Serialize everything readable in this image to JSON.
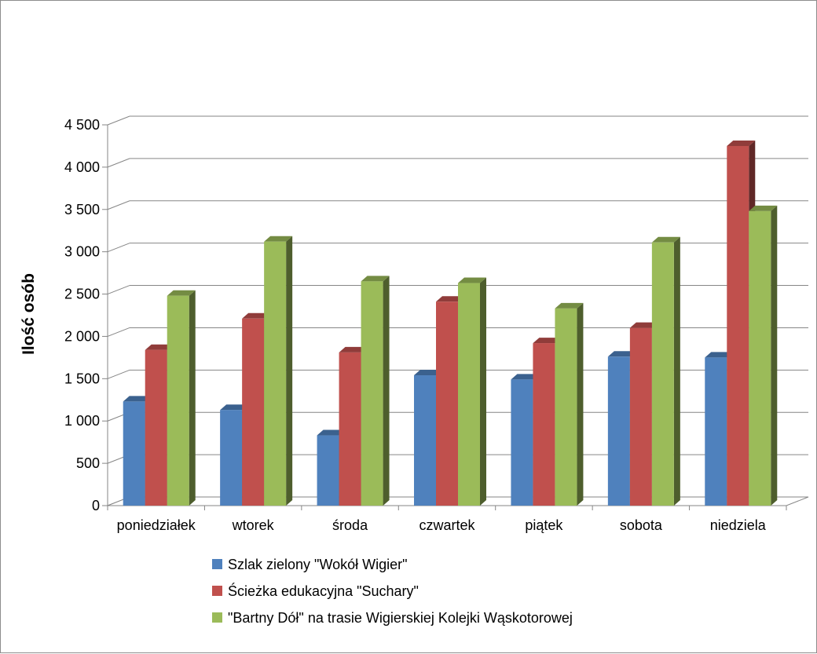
{
  "chart_data": {
    "type": "bar",
    "title": "",
    "xlabel": "",
    "ylabel": "Ilość osób",
    "ylim": [
      0,
      4500
    ],
    "yticks": [
      0,
      500,
      1000,
      1500,
      2000,
      2500,
      3000,
      3500,
      4000,
      4500
    ],
    "ytick_labels": [
      "0",
      "500",
      "1 000",
      "1 500",
      "2 000",
      "2 500",
      "3 000",
      "3 500",
      "4 000",
      "4 500"
    ],
    "grid": true,
    "legend_position": "bottom",
    "categories": [
      "poniedziałek",
      "wtorek",
      "środa",
      "czwartek",
      "piątek",
      "sobota",
      "niedziela"
    ],
    "series": [
      {
        "name": "Szlak zielony \"Wokół Wigier\"",
        "color": "#4f81bd",
        "values": [
          1230,
          1130,
          830,
          1540,
          1490,
          1760,
          1750
        ]
      },
      {
        "name": "Ścieżka edukacyjna \"Suchary\"",
        "color": "#c0504d",
        "values": [
          1840,
          2210,
          1810,
          2410,
          1920,
          2100,
          4250
        ]
      },
      {
        "name": "\"Bartny Dół\" na trasie Wigierskiej Kolejki Wąskotorowej",
        "color": "#9bbb59",
        "values": [
          2480,
          3120,
          2650,
          2630,
          2330,
          3110,
          3480
        ]
      }
    ]
  }
}
